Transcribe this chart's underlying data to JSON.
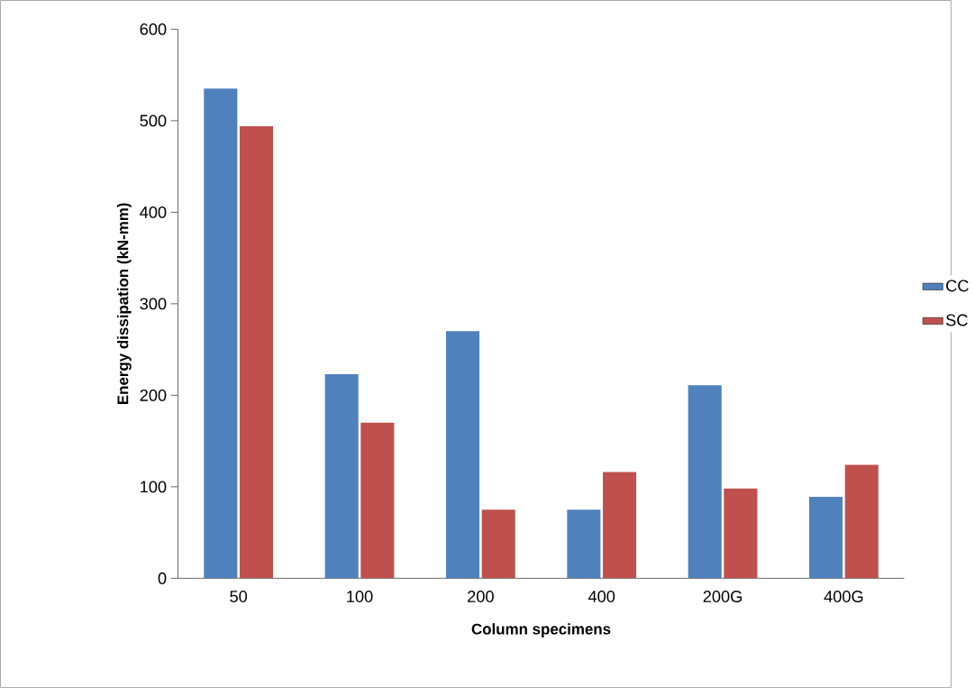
{
  "chart_data": {
    "type": "bar",
    "xlabel": "Column specimens",
    "ylabel": "Energy dissipation (kN-mm)",
    "categories": [
      "50",
      "100",
      "200",
      "400",
      "200G",
      "400G"
    ],
    "series": [
      {
        "name": "CC",
        "color": "#4f81bd",
        "values": [
          535,
          223,
          270,
          75,
          211,
          89
        ]
      },
      {
        "name": "SC",
        "color": "#c0504d",
        "values": [
          494,
          170,
          75,
          116,
          98,
          124
        ]
      }
    ],
    "ylim": [
      0,
      600
    ],
    "yticks": [
      0,
      100,
      200,
      300,
      400,
      500,
      600
    ],
    "legend": "right"
  }
}
